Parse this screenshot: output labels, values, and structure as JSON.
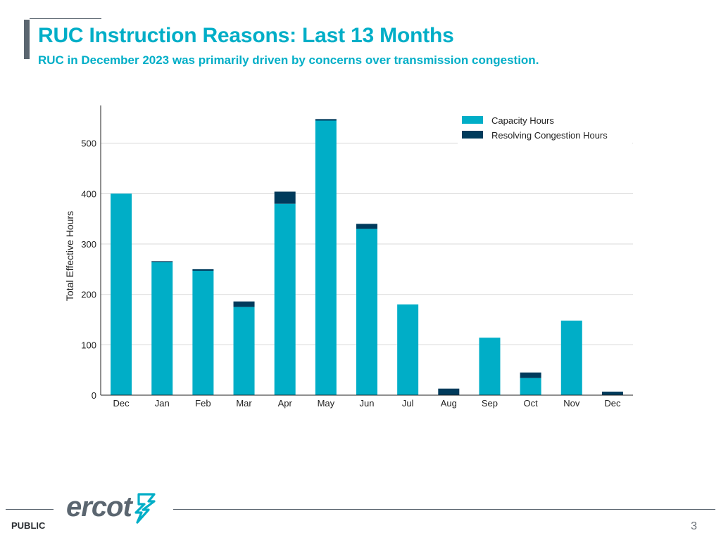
{
  "header": {
    "title": "RUC Instruction Reasons: Last 13 Months",
    "subtitle": "RUC in December 2023 was primarily driven by concerns over transmission congestion."
  },
  "footer": {
    "classification": "PUBLIC",
    "page_number": "3",
    "logo_text": "ercot"
  },
  "colors": {
    "accent": "#00aec7",
    "capacity": "#00aec7",
    "congestion": "#003b5c",
    "text_gray": "#5b6670"
  },
  "chart_data": {
    "type": "bar",
    "stacked": true,
    "title": "",
    "xlabel": "",
    "ylabel": "Total Effective Hours",
    "ylim": [
      0,
      575
    ],
    "yticks": [
      0,
      100,
      200,
      300,
      400,
      500
    ],
    "grid": true,
    "legend_position": "top-right",
    "categories": [
      "Dec",
      "Jan",
      "Feb",
      "Mar",
      "Apr",
      "May",
      "Jun",
      "Jul",
      "Aug",
      "Sep",
      "Oct",
      "Nov",
      "Dec"
    ],
    "series": [
      {
        "name": "Capacity Hours",
        "color": "#00aec7",
        "values": [
          400,
          264,
          247,
          175,
          380,
          545,
          330,
          180,
          0,
          114,
          34,
          148,
          0
        ]
      },
      {
        "name": "Resolving Congestion Hours",
        "color": "#003b5c",
        "values": [
          0,
          2,
          3,
          11,
          24,
          3,
          10,
          0,
          13,
          0,
          11,
          0,
          7
        ]
      }
    ]
  }
}
